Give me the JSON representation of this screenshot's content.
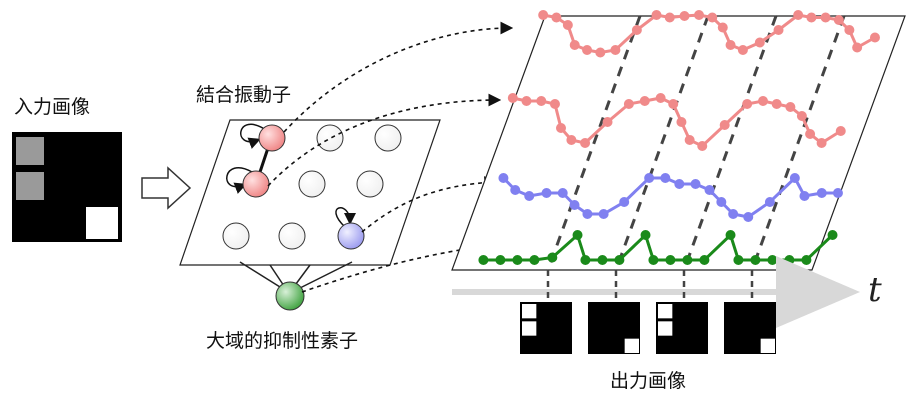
{
  "labels": {
    "input_image": "入力画像",
    "coupled_oscillators": "結合振動子",
    "global_inhibitor": "大域的抑制性素子",
    "output_image": "出力画像",
    "time_axis": "t"
  },
  "input_image": {
    "grid": [
      [
        "gray",
        "black",
        "black"
      ],
      [
        "gray",
        "black",
        "black"
      ],
      [
        "black",
        "black",
        "white"
      ]
    ]
  },
  "oscillators": {
    "colors": {
      "red": "#f08a8a",
      "blue": "#a8a8ff",
      "green": "#55b255",
      "white": "#ffffff"
    }
  },
  "traces": [
    {
      "name": "red-top",
      "color": "#f08a8a",
      "values": [
        0.9,
        0.85,
        0.7,
        0.3,
        0.2,
        0.15,
        0.2,
        0.6,
        0.9,
        0.85,
        0.88,
        0.9,
        0.85,
        0.65,
        0.3,
        0.2,
        0.35,
        0.6,
        0.9,
        0.85,
        0.85,
        0.8,
        0.6,
        0.25,
        0.45
      ]
    },
    {
      "name": "red-second",
      "color": "#f08a8a",
      "values": [
        0.9,
        0.85,
        0.85,
        0.8,
        0.4,
        0.2,
        0.15,
        0.5,
        0.8,
        0.85,
        0.9,
        0.8,
        0.5,
        0.2,
        0.1,
        0.45,
        0.8,
        0.85,
        0.8,
        0.75,
        0.6,
        0.3,
        0.15,
        0.35
      ]
    },
    {
      "name": "blue",
      "color": "#8080f0",
      "values": [
        0.7,
        0.5,
        0.4,
        0.45,
        0.45,
        0.25,
        0.1,
        0.1,
        0.3,
        0.7,
        0.7,
        0.6,
        0.6,
        0.5,
        0.3,
        0.1,
        0.05,
        0.3,
        0.7,
        0.4,
        0.45,
        0.45
      ]
    },
    {
      "name": "green",
      "color": "#1a8a1a",
      "values": [
        0.2,
        0.2,
        0.2,
        0.2,
        0.25,
        0.7,
        0.2,
        0.2,
        0.2,
        0.7,
        0.2,
        0.2,
        0.2,
        0.2,
        0.7,
        0.2,
        0.2,
        0.2,
        0.2,
        0.2,
        0.7
      ]
    }
  ],
  "output_images": [
    {
      "top_left": "white",
      "mid_left": "white",
      "bottom_right": "black"
    },
    {
      "top_left": "black",
      "mid_left": "black",
      "bottom_right": "white"
    },
    {
      "top_left": "white",
      "mid_left": "white",
      "bottom_right": "black"
    },
    {
      "top_left": "black",
      "mid_left": "black",
      "bottom_right": "white"
    }
  ]
}
